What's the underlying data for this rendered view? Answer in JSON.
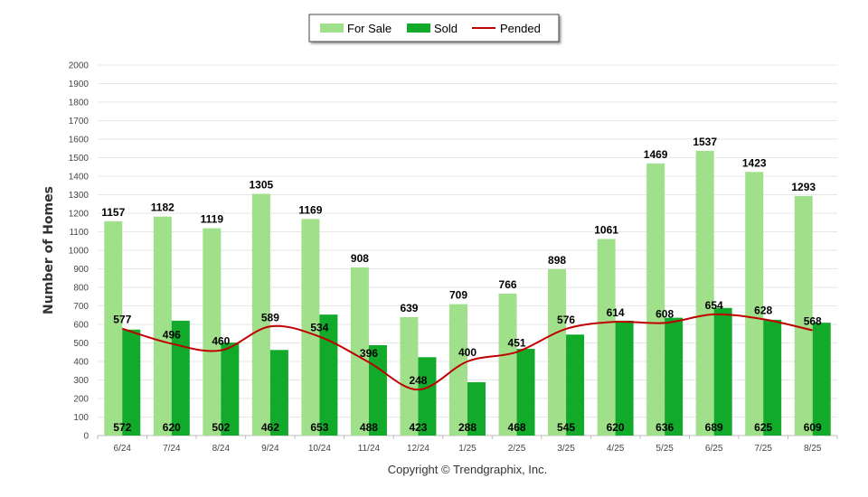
{
  "chart_data": {
    "type": "bar",
    "categories": [
      "6/24",
      "7/24",
      "8/24",
      "9/24",
      "10/24",
      "11/24",
      "12/24",
      "1/25",
      "2/25",
      "3/25",
      "4/25",
      "5/25",
      "6/25",
      "7/25",
      "8/25"
    ],
    "series": [
      {
        "name": "For Sale",
        "type": "bar",
        "color": "#a0e08a",
        "values": [
          1157,
          1182,
          1119,
          1305,
          1169,
          908,
          639,
          709,
          766,
          898,
          1061,
          1469,
          1537,
          1423,
          1293
        ]
      },
      {
        "name": "Sold",
        "type": "bar",
        "color": "#11aa2a",
        "values": [
          572,
          620,
          502,
          462,
          653,
          488,
          423,
          288,
          468,
          545,
          620,
          636,
          689,
          625,
          609
        ]
      },
      {
        "name": "Pended",
        "type": "line",
        "color": "#c00000",
        "values": [
          577,
          496,
          460,
          589,
          534,
          396,
          248,
          400,
          451,
          576,
          614,
          608,
          654,
          628,
          568
        ]
      }
    ],
    "title": "",
    "xlabel": "",
    "ylabel": "Number of Homes",
    "ylim": [
      0,
      2000
    ],
    "yticks": [
      0,
      100,
      200,
      300,
      400,
      500,
      600,
      700,
      800,
      900,
      1000,
      1100,
      1200,
      1300,
      1400,
      1500,
      1600,
      1700,
      1800,
      1900,
      2000
    ],
    "grid": true,
    "legend_position": "top-center",
    "footer": "Copyright © Trendgraphix, Inc."
  }
}
